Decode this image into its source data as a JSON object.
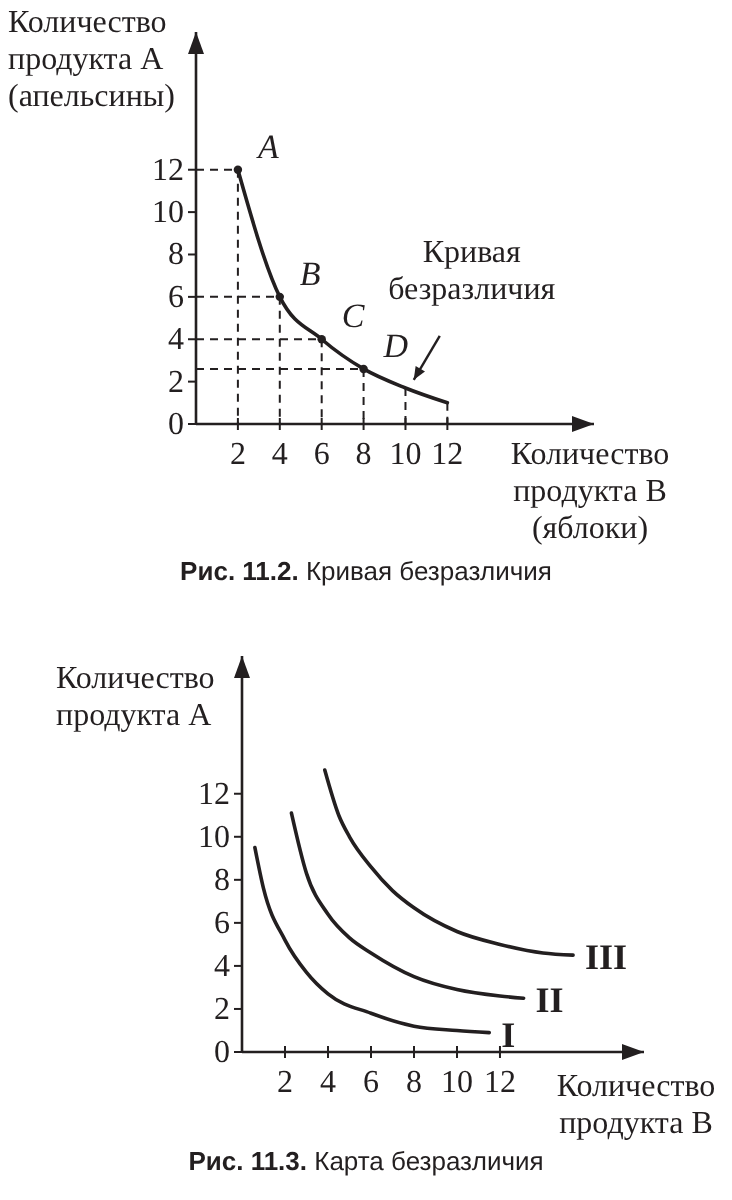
{
  "chart_data": [
    {
      "type": "line",
      "title": "Рис. 11.2. Кривая безразличия",
      "xlabel": "Количество\nпродукта В\n(яблоки)",
      "ylabel": "Количество\nпродукта А\n(апельсины)",
      "xlim": [
        0,
        19
      ],
      "ylim": [
        0,
        18.5
      ],
      "xticks": [
        2,
        4,
        6,
        8,
        10,
        12
      ],
      "yticks": [
        0,
        2,
        4,
        6,
        8,
        10,
        12
      ],
      "grid": false,
      "series": [
        {
          "color": "#231f20",
          "marker": "none",
          "x": [
            2,
            4,
            6,
            8,
            10,
            12
          ],
          "values": [
            12,
            6,
            4,
            2.6,
            1.7,
            1
          ]
        },
        {
          "type": "scatter",
          "color": "#231f20",
          "marker": "circle",
          "x": [
            2,
            4,
            6,
            8
          ],
          "values": [
            12,
            6,
            4,
            2.6
          ]
        }
      ],
      "annotations": [
        {
          "text": "A",
          "x": 2,
          "y": 12
        },
        {
          "text": "B",
          "x": 4,
          "y": 6
        },
        {
          "text": "C",
          "x": 6,
          "y": 4
        },
        {
          "text": "D",
          "x": 8,
          "y": 2.6
        },
        {
          "text": "Кривая\nбезразличия",
          "x": 10.3,
          "y": 1.8
        }
      ]
    },
    {
      "type": "line",
      "title": "Рис. 11.3. Карта безразличия",
      "xlabel": "Количество\nпродукта В",
      "ylabel": "Количество\nпродукта А",
      "xlim": [
        0,
        18.7
      ],
      "ylim": [
        0,
        18.4
      ],
      "xticks": [
        2,
        4,
        6,
        8,
        10,
        12
      ],
      "yticks": [
        0,
        2,
        4,
        6,
        8,
        10,
        12
      ],
      "grid": false,
      "series": [
        {
          "name": "I",
          "color": "#231f20",
          "marker": "none",
          "x": [
            0.6,
            1,
            2,
            3,
            4,
            6,
            8,
            10,
            11.5
          ],
          "values": [
            9.5,
            7.6,
            5.2,
            3.7,
            2.7,
            1.8,
            1.2,
            1,
            0.9
          ]
        },
        {
          "name": "II",
          "color": "#231f20",
          "marker": "none",
          "x": [
            2.3,
            3,
            4,
            5,
            6,
            8,
            10,
            12,
            13.1
          ],
          "values": [
            11.1,
            8.3,
            6.4,
            5.3,
            4.6,
            3.5,
            2.9,
            2.6,
            2.5
          ]
        },
        {
          "name": "III",
          "color": "#231f20",
          "marker": "none",
          "x": [
            3.85,
            4.5,
            5,
            6,
            7,
            8,
            10,
            12,
            14,
            15.4
          ],
          "values": [
            13.1,
            11,
            10,
            8.6,
            7.5,
            6.7,
            5.6,
            5,
            4.6,
            4.5
          ]
        }
      ]
    }
  ]
}
